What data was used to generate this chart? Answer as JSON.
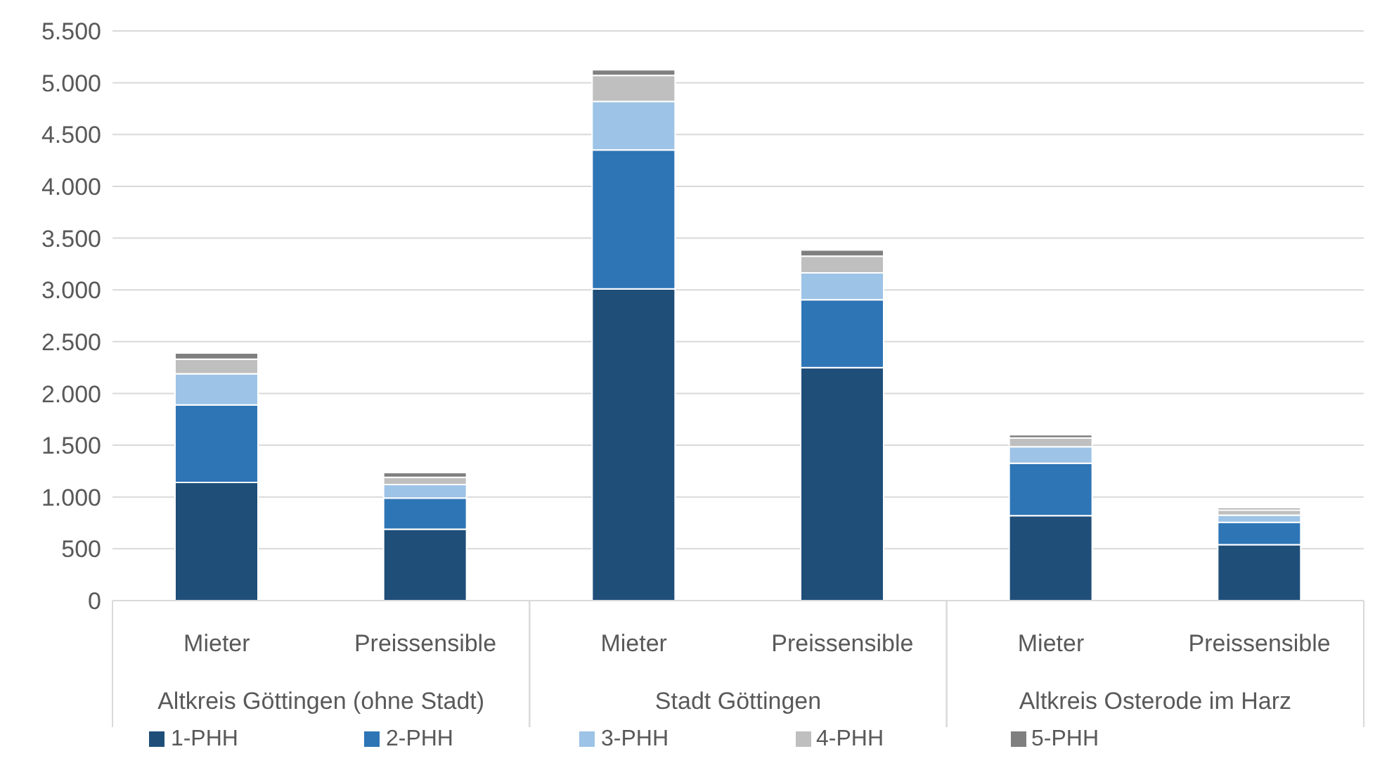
{
  "chart_data": {
    "type": "bar",
    "stacked": true,
    "categories": [
      "Mieter",
      "Preissensible",
      "Mieter",
      "Preissensible",
      "Mieter",
      "Preissensible"
    ],
    "annotations": [
      "Altkreis Göttingen (ohne Stadt)",
      "Stadt Göttingen",
      "Altkreis Osterode im Harz"
    ],
    "series": [
      {
        "name": "1-PHH",
        "color": "#1f4e79",
        "values": [
          1140,
          690,
          3010,
          2250,
          820,
          540
        ]
      },
      {
        "name": "2-PHH",
        "color": "#2e75b6",
        "values": [
          750,
          300,
          1340,
          655,
          505,
          215
        ]
      },
      {
        "name": "3-PHH",
        "color": "#9dc3e6",
        "values": [
          300,
          130,
          470,
          260,
          160,
          70
        ]
      },
      {
        "name": "4-PHH",
        "color": "#bfbfbf",
        "values": [
          140,
          70,
          250,
          160,
          85,
          50
        ]
      },
      {
        "name": "5-PHH",
        "color": "#7f7f7f",
        "values": [
          60,
          45,
          55,
          60,
          30,
          20
        ]
      }
    ],
    "ylim": [
      0,
      5500
    ],
    "yticks": [
      {
        "value": 0,
        "label": "0"
      },
      {
        "value": 500,
        "label": "500"
      },
      {
        "value": 1000,
        "label": "1.000"
      },
      {
        "value": 1500,
        "label": "1.500"
      },
      {
        "value": 2000,
        "label": "2.000"
      },
      {
        "value": 2500,
        "label": "2.500"
      },
      {
        "value": 3000,
        "label": "3.000"
      },
      {
        "value": 3500,
        "label": "3.500"
      },
      {
        "value": 4000,
        "label": "4.000"
      },
      {
        "value": 4500,
        "label": "4.500"
      },
      {
        "value": 5000,
        "label": "5.000"
      },
      {
        "value": 5500,
        "label": "5.500"
      }
    ],
    "grid": "y",
    "legend": "bottom"
  }
}
